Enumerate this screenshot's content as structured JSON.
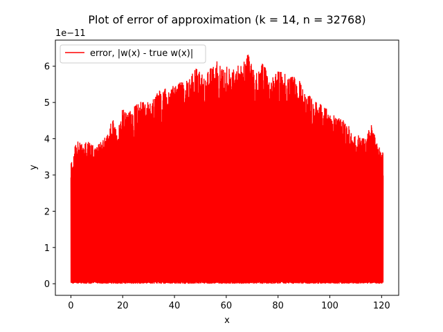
{
  "chart_data": {
    "type": "line",
    "title": "Plot of error of approximation (k = 14, n = 32768)",
    "xlabel": "x",
    "ylabel": "y",
    "y_offset_label": "1e−11",
    "xlim": [
      -6.0,
      126.6
    ],
    "ylim": [
      -0.32,
      6.72
    ],
    "x_ticks": [
      0,
      20,
      40,
      60,
      80,
      100,
      120
    ],
    "x_tick_labels": [
      "0",
      "20",
      "40",
      "60",
      "80",
      "100",
      "120"
    ],
    "y_ticks": [
      0,
      1,
      2,
      3,
      4,
      5,
      6
    ],
    "y_tick_labels": [
      "0",
      "1",
      "2",
      "3",
      "4",
      "5",
      "6"
    ],
    "grid": false,
    "legend_placement": "upper left",
    "series": [
      {
        "name": "error, |w(x) - true w(x)|",
        "color": "#ff0000",
        "x_range": [
          0,
          120.6
        ],
        "envelope": {
          "x": [
            0,
            2,
            4,
            6,
            8,
            10,
            12,
            14,
            16,
            18,
            20,
            22,
            24,
            26,
            28,
            30,
            32,
            34,
            36,
            38,
            40,
            42,
            44,
            46,
            48,
            50,
            52,
            54,
            56,
            58,
            60,
            62,
            64,
            66,
            68,
            70,
            72,
            74,
            76,
            78,
            80,
            82,
            84,
            86,
            88,
            90,
            92,
            94,
            96,
            98,
            100,
            102,
            104,
            106,
            108,
            110,
            112,
            114,
            116,
            118,
            120
          ],
          "y_max": [
            3.35,
            3.95,
            3.9,
            3.95,
            3.9,
            3.9,
            4.0,
            4.1,
            4.6,
            4.2,
            4.85,
            4.75,
            4.9,
            5.0,
            5.05,
            5.05,
            5.1,
            5.35,
            5.4,
            5.4,
            5.5,
            5.6,
            5.55,
            5.7,
            6.0,
            5.85,
            5.75,
            5.95,
            6.18,
            6.02,
            6.0,
            5.95,
            6.1,
            6.0,
            6.4,
            6.1,
            5.85,
            6.1,
            5.9,
            5.75,
            5.95,
            5.85,
            5.7,
            5.75,
            5.65,
            5.4,
            5.25,
            5.05,
            5.0,
            4.9,
            4.75,
            4.7,
            4.55,
            4.5,
            4.3,
            4.15,
            4.1,
            4.0,
            4.5,
            3.9,
            3.65
          ]
        },
        "y_min": 0
      }
    ]
  }
}
